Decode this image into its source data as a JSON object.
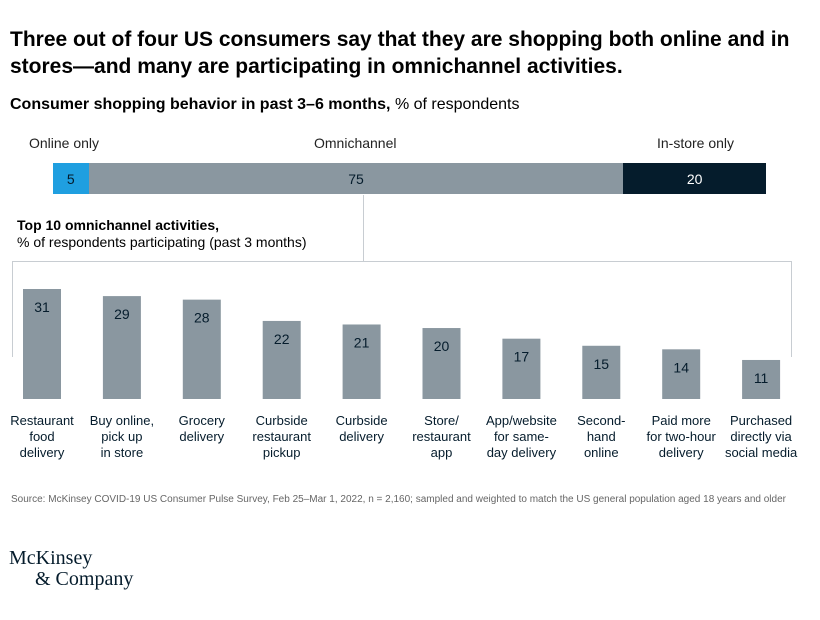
{
  "headline": "Three out of four US consumers say that they are shopping both online and in stores—and many are participating in omnichannel activities.",
  "subtitle": {
    "bold": "Consumer shopping behavior in past 3–6 months,",
    "rest": "% of respondents"
  },
  "chart_data": [
    {
      "type": "bar",
      "orientation": "horizontal-stacked",
      "categories": [
        "Online only",
        "Omnichannel",
        "In-store only"
      ],
      "values": [
        5,
        75,
        20
      ],
      "colors": [
        "#1f9fe0",
        "#8a97a0",
        "#051c2c"
      ],
      "value_text_colors": [
        "#051c2c",
        "#051c2c",
        "#ffffff"
      ]
    },
    {
      "type": "bar",
      "title": "Top 10 omnichannel activities,",
      "subtitle": "% of respondents participating (past 3 months)",
      "categories": [
        [
          "Restaurant",
          "food",
          "delivery"
        ],
        [
          "Buy online,",
          "pick up",
          "in store"
        ],
        [
          "Grocery",
          "delivery"
        ],
        [
          "Curbside",
          "restaurant",
          "pickup"
        ],
        [
          "Curbside",
          "delivery"
        ],
        [
          "Store/",
          "restaurant",
          "app"
        ],
        [
          "App/website",
          "for same-",
          "day delivery"
        ],
        [
          "Second-",
          "hand",
          "online"
        ],
        [
          "Paid more",
          "for two-hour",
          "delivery"
        ],
        [
          "Purchased",
          "directly via",
          "social media"
        ]
      ],
      "values": [
        31,
        29,
        28,
        22,
        21,
        20,
        17,
        15,
        14,
        11
      ],
      "color": "#8a97a0",
      "grid": false
    }
  ],
  "source": "Source: McKinsey COVID-19 US Consumer Pulse Survey, Feb 25–Mar 1, 2022, n = 2,160; sampled and weighted to match the US general population aged 18 years and older",
  "logo": {
    "line1": "McKinsey",
    "line2": "& Company"
  }
}
